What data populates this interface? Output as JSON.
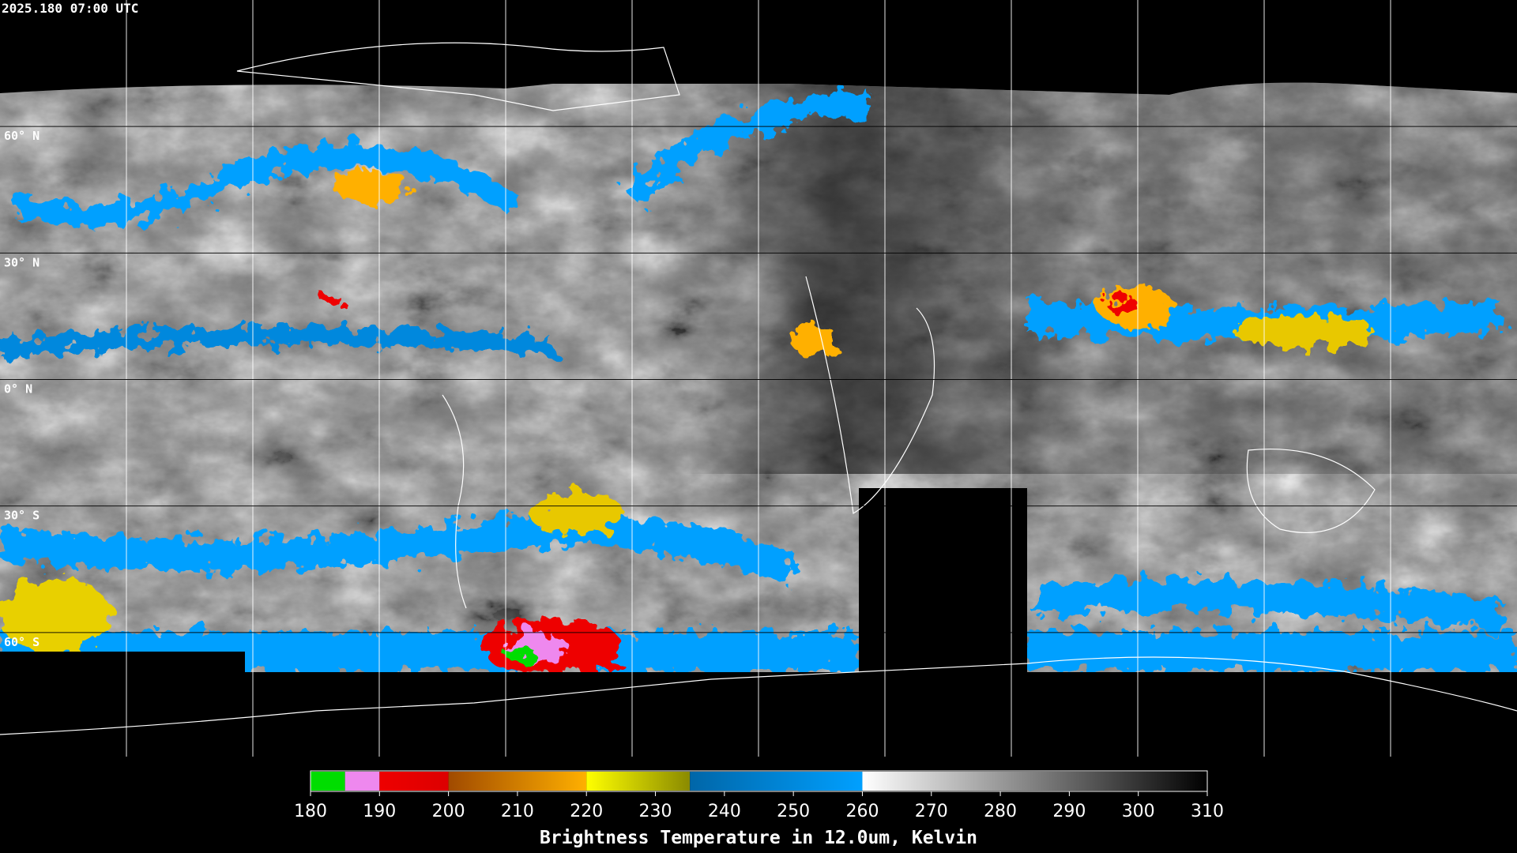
{
  "header": {
    "timestamp": "2025.180 07:00 UTC"
  },
  "map": {
    "latitude_labels": [
      "60° N",
      "30° N",
      "0° N",
      "30° S",
      "60° S"
    ]
  },
  "colorbar": {
    "lim": [
      180,
      310
    ],
    "ticks": [
      180,
      190,
      200,
      210,
      220,
      230,
      240,
      250,
      260,
      270,
      280,
      290,
      300,
      310
    ],
    "segments": [
      {
        "from": 180,
        "to": 185,
        "colors": [
          "#00dd00",
          "#00dd00"
        ]
      },
      {
        "from": 185,
        "to": 190,
        "colors": [
          "#ee88ee",
          "#ee88ee"
        ]
      },
      {
        "from": 190,
        "to": 200,
        "colors": [
          "#ee0000",
          "#dd0000"
        ]
      },
      {
        "from": 200,
        "to": 220,
        "colors": [
          "#a04a00",
          "#ffb000"
        ]
      },
      {
        "from": 220,
        "to": 235,
        "colors": [
          "#ffff00",
          "#8a8a00"
        ]
      },
      {
        "from": 235,
        "to": 260,
        "colors": [
          "#0066a8",
          "#00a0ff"
        ]
      },
      {
        "from": 260,
        "to": 310,
        "colors": [
          "#ffffff",
          "#000000"
        ]
      }
    ],
    "label": "Brightness Temperature in 12.0um, Kelvin"
  }
}
